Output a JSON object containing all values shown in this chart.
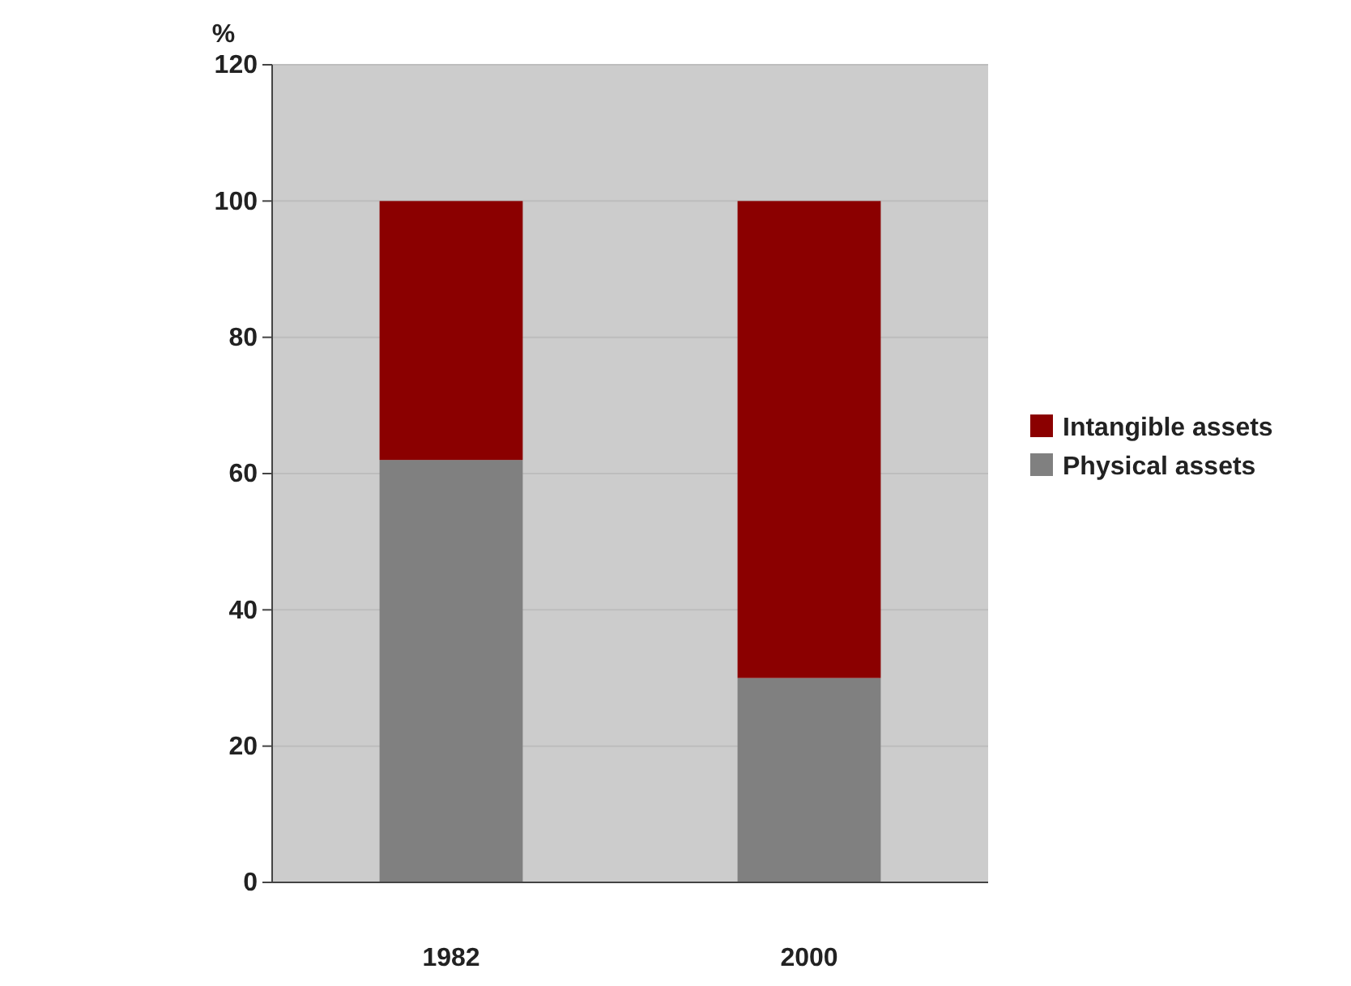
{
  "chart_data": {
    "type": "bar",
    "ylabel": "%",
    "categories": [
      "1982",
      "2000"
    ],
    "series": [
      {
        "name": "Physical assets",
        "color": "#808080",
        "values": [
          62,
          30
        ]
      },
      {
        "name": "Intangible assets",
        "color": "#8b0000",
        "values": [
          38,
          70
        ]
      }
    ],
    "stacked": true,
    "ylim": [
      0,
      120
    ],
    "yticks": [
      0,
      20,
      40,
      60,
      80,
      100,
      120
    ],
    "grid": "y",
    "legend": "right"
  }
}
